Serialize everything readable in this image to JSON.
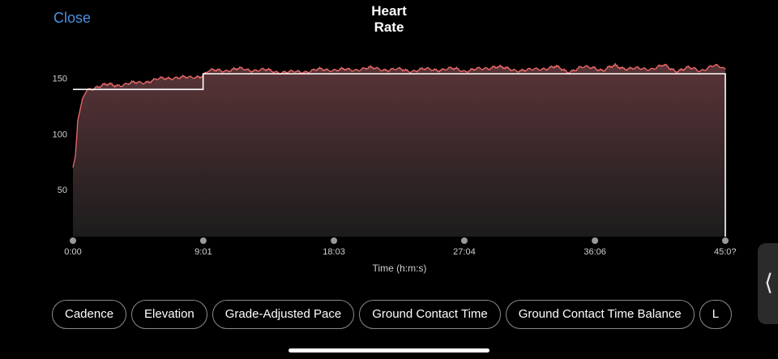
{
  "header": {
    "close_label": "Close",
    "title_line1": "Heart",
    "title_line2": "Rate"
  },
  "chart_data": {
    "type": "line",
    "title": "Heart Rate",
    "xlabel": "Time (h:m:s)",
    "ylabel": "",
    "x_ticks": [
      "0:00",
      "9:01",
      "18:03",
      "27:04",
      "36:06",
      "45:0?"
    ],
    "x_tick_seconds": [
      0,
      541,
      1083,
      1624,
      2166,
      2707
    ],
    "y_ticks": [
      50,
      100,
      150
    ],
    "xlim_seconds": [
      0,
      2707
    ],
    "ylim": [
      8,
      162
    ],
    "grid": false,
    "series": [
      {
        "kind": "heart-rate",
        "color": "#f06a6a",
        "x": [
          0,
          10,
          20,
          40,
          60,
          90,
          120,
          150,
          180,
          240,
          300,
          360,
          420,
          480,
          540,
          560,
          600,
          700,
          800,
          900,
          1000,
          1083,
          1150,
          1200,
          1300,
          1400,
          1500,
          1600,
          1624,
          1700,
          1750,
          1800,
          1900,
          1950,
          2000,
          2050,
          2100,
          2166,
          2200,
          2250,
          2300,
          2350,
          2400,
          2450,
          2500,
          2550,
          2600,
          2650,
          2680,
          2707
        ],
        "y": [
          70,
          80,
          112,
          132,
          140,
          142,
          143,
          144,
          144,
          145,
          147,
          149,
          151,
          150,
          153,
          156,
          157,
          158,
          157,
          155,
          157,
          158,
          157,
          159,
          158,
          157,
          158,
          158,
          157,
          158,
          161,
          158,
          157,
          159,
          160,
          156,
          159,
          160,
          157,
          161,
          159,
          158,
          159,
          161,
          157,
          159,
          157,
          161,
          160,
          158
        ]
      },
      {
        "kind": "zone-step",
        "color": "#ffffff",
        "x": [
          0,
          300,
          300,
          540,
          540,
          2707
        ],
        "y": [
          140,
          140,
          140,
          140,
          154,
          154
        ]
      }
    ]
  },
  "metrics": [
    "Cadence",
    "Elevation",
    "Grade-Adjusted Pace",
    "Ground Contact Time",
    "Ground Contact Time Balance",
    "L"
  ],
  "icons": {
    "side_handle": "chevron-left-icon"
  },
  "colors": {
    "accent": "#4a90e2",
    "line": "#f06a6a",
    "fill_top": "#5a3438",
    "fill_bottom": "#1c1c1c"
  }
}
